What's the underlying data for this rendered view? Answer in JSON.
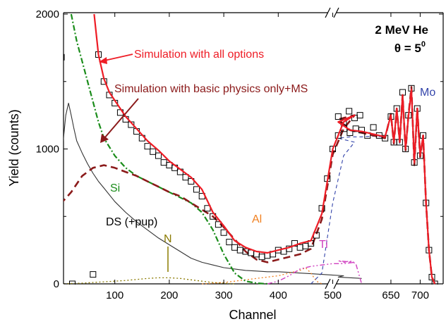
{
  "chart_data": {
    "type": "line",
    "title": "",
    "xlabel": "Channel",
    "ylabel": "Yield (counts)",
    "x_ticks": [
      100,
      200,
      300,
      400,
      500,
      650,
      700
    ],
    "y_ticks": [
      0,
      1000,
      2000
    ],
    "ylim": [
      0,
      2000
    ],
    "x_axis_break": true,
    "grid": false,
    "corner_text": {
      "line1": "2 MeV He",
      "line2_prefix": "θ = 5",
      "line2_sup": "0"
    },
    "annotations": {
      "all_options": "Simulation with all options",
      "basic_physics": "Simulation with basic physics only+MS",
      "si": "Si",
      "ds": "DS (+pup)",
      "n": "N",
      "al": "Al",
      "ti": "Ti",
      "mo": "Mo"
    },
    "colors": {
      "experiment": "#000000",
      "all_options": "#ee1c25",
      "basic_physics": "#8b1a1a",
      "si": "#1a8c1a",
      "ds": "#333333",
      "n": "#8a7a00",
      "al": "#f08020",
      "ti": "#d040c0",
      "mo": "#3344aa"
    },
    "series": [
      {
        "key": "experiment",
        "style": "markers",
        "x": [
          2,
          22,
          60,
          70,
          80,
          90,
          100,
          110,
          120,
          130,
          140,
          150,
          160,
          170,
          180,
          190,
          200,
          210,
          220,
          230,
          240,
          250,
          260,
          270,
          280,
          290,
          300,
          310,
          320,
          330,
          340,
          350,
          360,
          370,
          380,
          390,
          400,
          410,
          420,
          430,
          440,
          450,
          460,
          470,
          480,
          490,
          500,
          510,
          520,
          530,
          540,
          550,
          560,
          570,
          580,
          590,
          600,
          610,
          620,
          630,
          640,
          650,
          655,
          660,
          665,
          670,
          675,
          680,
          685,
          690,
          695,
          700,
          705,
          710,
          715,
          720,
          725
        ],
        "y": [
          1680,
          0,
          70,
          1700,
          1500,
          1400,
          1340,
          1270,
          1220,
          1180,
          1130,
          1080,
          1020,
          980,
          950,
          900,
          880,
          860,
          830,
          790,
          760,
          700,
          650,
          560,
          500,
          440,
          380,
          310,
          270,
          250,
          240,
          230,
          220,
          200,
          210,
          220,
          250,
          240,
          260,
          300,
          270,
          280,
          300,
          360,
          560,
          780,
          1000,
          1100,
          1200,
          1280,
          1230,
          1250,
          1240,
          1150,
          1120,
          1150,
          1140,
          1100,
          1160,
          1100,
          1080,
          1240,
          1050,
          1300,
          1050,
          1420,
          1000,
          1250,
          1450,
          900,
          1300,
          950,
          1100,
          600,
          250,
          50,
          0
        ]
      },
      {
        "key": "all_options",
        "style": "solid",
        "x": [
          62,
          70,
          80,
          90,
          100,
          120,
          140,
          160,
          180,
          200,
          220,
          240,
          260,
          280,
          300,
          320,
          340,
          360,
          380,
          400,
          420,
          440,
          460,
          480,
          500,
          520,
          540,
          560,
          580,
          600,
          620,
          640,
          650,
          655,
          660,
          665,
          670,
          675,
          680,
          685,
          690,
          695,
          700,
          705,
          710,
          715,
          720,
          725
        ],
        "y": [
          2000,
          1700,
          1520,
          1420,
          1360,
          1240,
          1150,
          1060,
          990,
          910,
          850,
          790,
          700,
          530,
          430,
          320,
          270,
          240,
          230,
          250,
          270,
          300,
          320,
          520,
          1000,
          1200,
          1250,
          1200,
          1140,
          1130,
          1110,
          1090,
          1250,
          1050,
          1300,
          1050,
          1400,
          1000,
          1240,
          1440,
          900,
          1300,
          950,
          1100,
          600,
          250,
          50,
          0
        ]
      },
      {
        "key": "basic_physics",
        "style": "dashed",
        "x": [
          0,
          20,
          40,
          60,
          80,
          100,
          120,
          140,
          160,
          180,
          200,
          220,
          240,
          260,
          280,
          300,
          320,
          340,
          360,
          380,
          400,
          420,
          440,
          460,
          480,
          500,
          520,
          540,
          560,
          580,
          600,
          620,
          640,
          650,
          655,
          660,
          665,
          670,
          675,
          680,
          685,
          690,
          695,
          700,
          705,
          710,
          715,
          720,
          725
        ],
        "y": [
          590,
          680,
          800,
          860,
          880,
          860,
          830,
          800,
          760,
          720,
          680,
          650,
          600,
          550,
          500,
          420,
          330,
          240,
          180,
          160,
          180,
          200,
          220,
          260,
          480,
          960,
          1150,
          1250,
          1220,
          1140,
          1120,
          1100,
          1080,
          1260,
          1040,
          1300,
          1050,
          1400,
          990,
          1250,
          1460,
          880,
          1300,
          940,
          1100,
          600,
          250,
          50,
          0
        ]
      },
      {
        "key": "si",
        "style": "dash-dot",
        "x": [
          20,
          30,
          40,
          50,
          60,
          70,
          80,
          100,
          120,
          140,
          160,
          180,
          200,
          220,
          240,
          260,
          280,
          300,
          320,
          340,
          360,
          380
        ],
        "y": [
          2000,
          1800,
          1650,
          1500,
          1350,
          1200,
          1080,
          950,
          860,
          800,
          760,
          720,
          680,
          640,
          600,
          530,
          400,
          220,
          80,
          20,
          5,
          0
        ]
      },
      {
        "key": "ds",
        "style": "solid-thin",
        "x": [
          0,
          5,
          10,
          15,
          20,
          25,
          30,
          40,
          50,
          60,
          70,
          80,
          100,
          120,
          140,
          160,
          180,
          200,
          220,
          240,
          260,
          280,
          300,
          320,
          340,
          360,
          380,
          400,
          420,
          440,
          460,
          480,
          500,
          520,
          560,
          600
        ],
        "y": [
          800,
          1050,
          1250,
          1340,
          1250,
          1150,
          1060,
          970,
          890,
          820,
          760,
          710,
          610,
          530,
          460,
          400,
          340,
          290,
          240,
          190,
          160,
          140,
          120,
          110,
          100,
          95,
          90,
          90,
          85,
          80,
          75,
          70,
          65,
          60,
          50,
          40
        ]
      },
      {
        "key": "n",
        "style": "dotted",
        "x": [
          0,
          40,
          80,
          120,
          160,
          180,
          200,
          220,
          240,
          260,
          280,
          300,
          320
        ],
        "y": [
          0,
          5,
          15,
          25,
          40,
          45,
          45,
          40,
          30,
          20,
          10,
          5,
          0
        ]
      },
      {
        "key": "al",
        "style": "dotted",
        "x": [
          260,
          280,
          300,
          320,
          340,
          360,
          380,
          400,
          420,
          440,
          450,
          460,
          470,
          480
        ],
        "y": [
          0,
          5,
          10,
          20,
          30,
          40,
          50,
          60,
          80,
          100,
          120,
          80,
          20,
          0
        ]
      },
      {
        "key": "ti",
        "style": "dash-dot-dot",
        "x": [
          380,
          400,
          420,
          440,
          460,
          480,
          500,
          520,
          540,
          560,
          570,
          580,
          590,
          600
        ],
        "y": [
          0,
          20,
          60,
          110,
          130,
          140,
          150,
          150,
          160,
          170,
          160,
          170,
          150,
          0
        ]
      },
      {
        "key": "mo",
        "style": "dashed-thin",
        "x": [
          460,
          480,
          500,
          520,
          540,
          560,
          580,
          600,
          620,
          640,
          650,
          655,
          660,
          665,
          670,
          675,
          680,
          685,
          690,
          695,
          700,
          705,
          710,
          715,
          720,
          725
        ],
        "y": [
          0,
          80,
          600,
          950,
          1050,
          1080,
          1090,
          1090,
          1095,
          1090,
          1240,
          1040,
          1290,
          1040,
          1390,
          990,
          1240,
          1440,
          890,
          1290,
          940,
          1090,
          590,
          240,
          45,
          0
        ]
      }
    ]
  }
}
